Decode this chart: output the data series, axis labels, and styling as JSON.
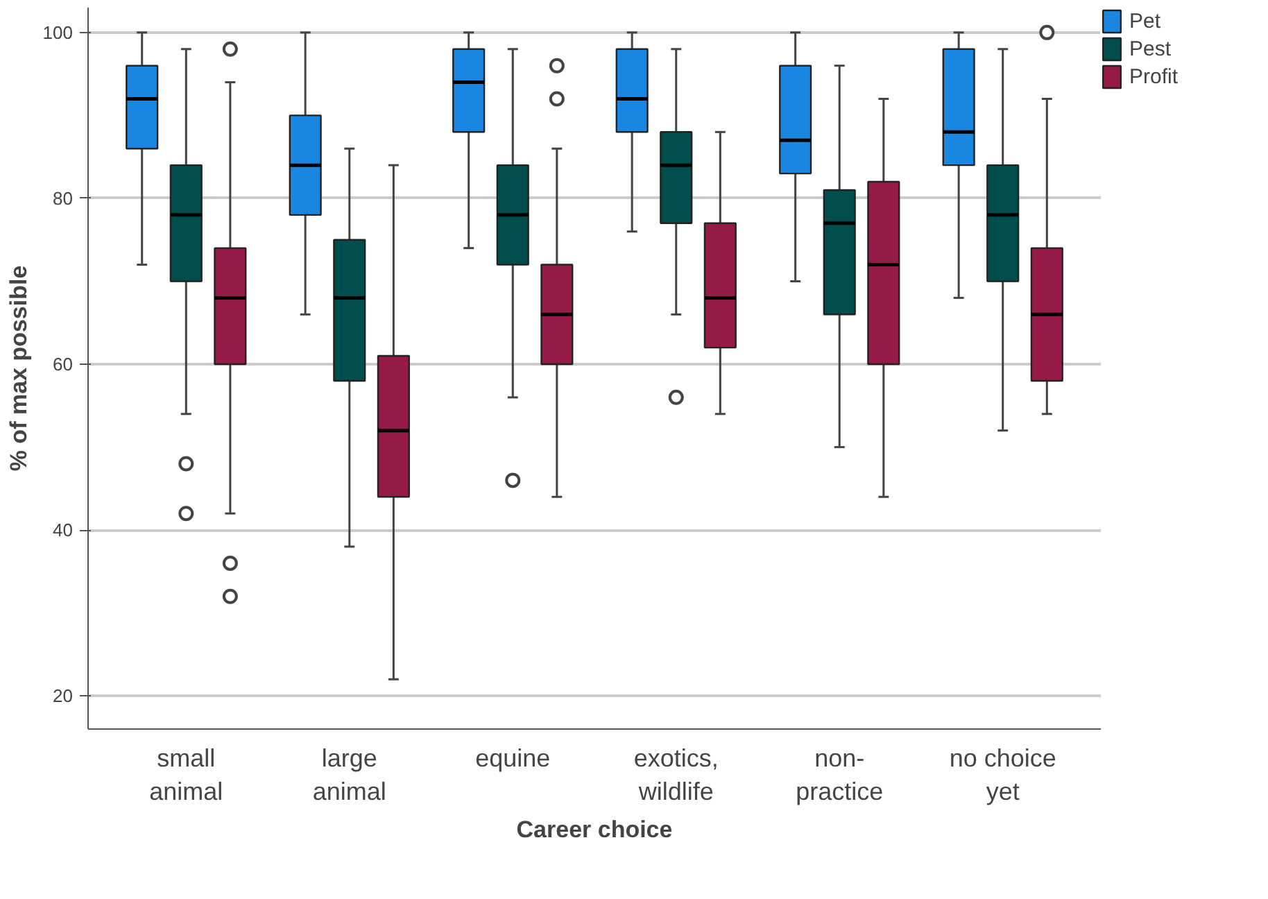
{
  "chart_data": {
    "type": "box",
    "xlabel": "Career choice",
    "ylabel": "% of max possible",
    "categories": [
      "small animal",
      "large animal",
      "equine",
      "exotics, wildlife",
      "non-practice",
      "no choice yet"
    ],
    "ylim": [
      16,
      103
    ],
    "yticks": [
      20,
      40,
      60,
      80,
      100
    ],
    "grid": "y",
    "legend": "top right",
    "series": [
      {
        "name": "Pet",
        "color": "#1a86e0",
        "boxes": [
          {
            "low": 72,
            "q1": 86,
            "median": 92,
            "q3": 96,
            "high": 100
          },
          {
            "low": 66,
            "q1": 78,
            "median": 84,
            "q3": 90,
            "high": 100
          },
          {
            "low": 74,
            "q1": 88,
            "median": 94,
            "q3": 98,
            "high": 100
          },
          {
            "low": 76,
            "q1": 88,
            "median": 92,
            "q3": 98,
            "high": 100
          },
          {
            "low": 70,
            "q1": 83,
            "median": 87,
            "q3": 96,
            "high": 100
          },
          {
            "low": 68,
            "q1": 84,
            "median": 88,
            "q3": 98,
            "high": 100
          }
        ]
      },
      {
        "name": "Pest",
        "color": "#004d4d",
        "boxes": [
          {
            "low": 54,
            "q1": 70,
            "median": 78,
            "q3": 84,
            "high": 98,
            "outliers": [
              48,
              42
            ]
          },
          {
            "low": 38,
            "q1": 58,
            "median": 68,
            "q3": 75,
            "high": 86
          },
          {
            "low": 56,
            "q1": 72,
            "median": 78,
            "q3": 84,
            "high": 98,
            "outliers": [
              46
            ]
          },
          {
            "low": 66,
            "q1": 77,
            "median": 84,
            "q3": 88,
            "high": 98,
            "outliers": [
              56
            ]
          },
          {
            "low": 50,
            "q1": 66,
            "median": 77,
            "q3": 81,
            "high": 96
          },
          {
            "low": 52,
            "q1": 70,
            "median": 78,
            "q3": 84,
            "high": 98
          }
        ]
      },
      {
        "name": "Profit",
        "color": "#951a48",
        "boxes": [
          {
            "low": 42,
            "q1": 60,
            "median": 68,
            "q3": 74,
            "high": 94,
            "outliers": [
              98,
              36,
              32
            ]
          },
          {
            "low": 22,
            "q1": 44,
            "median": 52,
            "q3": 61,
            "high": 84
          },
          {
            "low": 44,
            "q1": 60,
            "median": 66,
            "q3": 72,
            "high": 86,
            "outliers": [
              96,
              92
            ]
          },
          {
            "low": 54,
            "q1": 62,
            "median": 68,
            "q3": 77,
            "high": 88
          },
          {
            "low": 44,
            "q1": 60,
            "median": 72,
            "q3": 82,
            "high": 92
          },
          {
            "low": 54,
            "q1": 58,
            "median": 66,
            "q3": 74,
            "high": 92,
            "outliers": [
              100
            ]
          }
        ]
      }
    ]
  }
}
